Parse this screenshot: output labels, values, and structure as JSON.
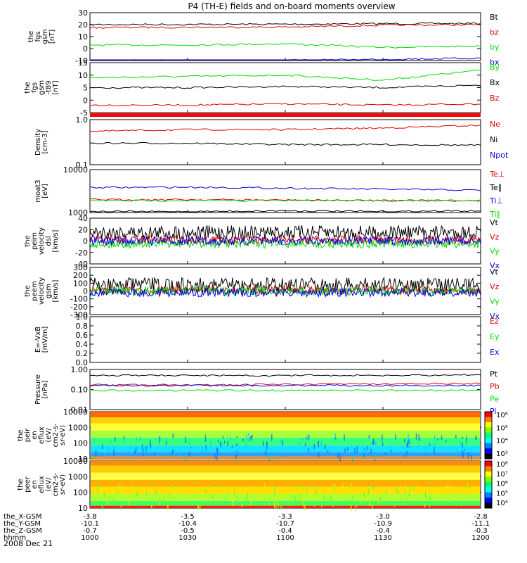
{
  "chart_data": {
    "type": "line",
    "title": "P4 (TH-E) fields and on-board moments overview",
    "date_label": "2008 Dec 21",
    "x": [
      "1000",
      "1030",
      "1100",
      "1130",
      "1200"
    ],
    "ephemeris": [
      {
        "label": "the_X-GSM",
        "values": [
          "-3.8",
          "-3.5",
          "-3.3",
          "-3.0",
          "-2.8"
        ]
      },
      {
        "label": "the_Y-GSM",
        "values": [
          "-10.1",
          "-10.4",
          "-10.7",
          "-10.9",
          "-11.1"
        ]
      },
      {
        "label": "the_Z-GSM",
        "values": [
          "-0.7",
          "-0.5",
          "-0.4",
          "-0.4",
          "-0.3"
        ]
      },
      {
        "label": "hhmm",
        "values": [
          "1000",
          "1030",
          "1100",
          "1130",
          "1200"
        ]
      }
    ],
    "panels": [
      {
        "ylabel": [
          "the",
          "fgs",
          "gsm",
          "[nT]"
        ],
        "ticks": [
          "30",
          "20",
          "10",
          "0",
          "-10"
        ],
        "series": [
          {
            "name": "Bt",
            "color": "#000000",
            "values": [
              20,
              20.2,
              20.4,
              20.8,
              21
            ]
          },
          {
            "name": "bz",
            "color": "#e00000",
            "values": [
              17.5,
              17.8,
              18,
              19.5,
              20
            ]
          },
          {
            "name": "by",
            "color": "#00dd00",
            "values": [
              3,
              3,
              4,
              1,
              2
            ]
          },
          {
            "name": "bx",
            "color": "#0000dd",
            "values": [
              -10,
              -10,
              -10,
              -9,
              -8
            ]
          }
        ]
      },
      {
        "ylabel": [
          "the",
          "fgs",
          "gsm",
          "-t89",
          "[nT]"
        ],
        "ticks": [
          "15",
          "10",
          "5",
          "0",
          "-5"
        ],
        "series": [
          {
            "name": "By",
            "color": "#00dd00",
            "values": [
              9,
              9.5,
              10,
              8,
              12
            ]
          },
          {
            "name": "Bx",
            "color": "#000000",
            "values": [
              5,
              5,
              5.5,
              5,
              6
            ]
          },
          {
            "name": "Bz",
            "color": "#e00000",
            "values": [
              -2,
              -2,
              -1.5,
              -2,
              -1.5
            ]
          }
        ]
      },
      {
        "ylabel": [
          "Density",
          "[cm-3]"
        ],
        "ticks": [
          "1.0",
          "0.1"
        ],
        "series": [
          {
            "name": "Ne",
            "color": "#e00000",
            "values": [
              0.55,
              0.6,
              0.6,
              0.65,
              0.75
            ]
          },
          {
            "name": "Ni",
            "color": "#000000",
            "values": [
              0.3,
              0.3,
              0.28,
              0.28,
              0.27
            ]
          },
          {
            "name": "Npot",
            "color": "#0000dd",
            "values": []
          }
        ]
      },
      {
        "ylabel": [
          "moat3",
          "[eV]"
        ],
        "ticks": [
          "10000",
          "1000"
        ],
        "series": [
          {
            "name": "Te⊥",
            "color": "#e00000",
            "values": [
              2000,
              2000,
              1950,
              1900,
              1900
            ]
          },
          {
            "name": "Te∥",
            "color": "#000000",
            "values": [
              1050,
              1050,
              1100,
              1050,
              1100
            ]
          },
          {
            "name": "Ti⊥",
            "color": "#0000dd",
            "values": [
              3800,
              3900,
              3700,
              3500,
              3300
            ]
          },
          {
            "name": "Ti∥",
            "color": "#00dd00",
            "values": [
              1900,
              1900,
              1900,
              1950,
              1900
            ]
          }
        ]
      },
      {
        "ylabel": [
          "the",
          "peim",
          "velocity",
          "dsl",
          "[km/s]"
        ],
        "ticks": [
          "40",
          "20",
          "0",
          "-20",
          "-40"
        ],
        "series": [
          {
            "name": "Vt",
            "color": "#000000",
            "values": [
              15,
              15,
              15,
              15,
              15
            ]
          },
          {
            "name": "Vz",
            "color": "#e00000",
            "values": [
              2,
              2,
              2,
              2,
              2
            ]
          },
          {
            "name": "Vy",
            "color": "#00dd00",
            "values": [
              -5,
              -5,
              -5,
              -5,
              -5
            ]
          },
          {
            "name": "Vx",
            "color": "#0000dd",
            "values": [
              0,
              0,
              0,
              0,
              0
            ]
          }
        ]
      },
      {
        "ylabel": [
          "the",
          "peem",
          "velocity",
          "gsm",
          "[km/s]"
        ],
        "ticks": [
          "300",
          "200",
          "100",
          "0",
          "-100",
          "-200",
          "-300"
        ],
        "series": [
          {
            "name": "Vt",
            "color": "#000000",
            "values": [
              80,
              80,
              80,
              80,
              80
            ]
          },
          {
            "name": "Vz",
            "color": "#e00000",
            "values": [
              10,
              10,
              10,
              10,
              10
            ]
          },
          {
            "name": "Vy",
            "color": "#00dd00",
            "values": [
              0,
              0,
              0,
              0,
              0
            ]
          },
          {
            "name": "Vx",
            "color": "#0000dd",
            "values": [
              -20,
              -20,
              -20,
              -20,
              -20
            ]
          }
        ]
      },
      {
        "ylabel": [
          "E=-VxB",
          "[mV/m]"
        ],
        "ticks": [
          "1.0",
          "0.8",
          "0.6",
          "0.4",
          "0.2",
          "0.0"
        ],
        "series": [
          {
            "name": "Ez",
            "color": "#e00000",
            "values": []
          },
          {
            "name": "Ey",
            "color": "#00dd00",
            "values": []
          },
          {
            "name": "Ex",
            "color": "#0000dd",
            "values": []
          }
        ]
      },
      {
        "ylabel": [
          "Pressure",
          "[nPa]"
        ],
        "ticks": [
          "1.00",
          "0.10",
          "0.01"
        ],
        "series": [
          {
            "name": "Pt",
            "color": "#000000",
            "values": [
              0.5,
              0.5,
              0.5,
              0.5,
              0.55
            ]
          },
          {
            "name": "Pb",
            "color": "#e00000",
            "values": [
              0.17,
              0.17,
              0.18,
              0.19,
              0.2
            ]
          },
          {
            "name": "Pe",
            "color": "#00dd00",
            "values": [
              0.09,
              0.09,
              0.09,
              0.09,
              0.09
            ]
          },
          {
            "name": "Pi",
            "color": "#0000dd",
            "values": [
              0.16,
              0.16,
              0.16,
              0.16,
              0.16
            ]
          }
        ]
      },
      {
        "ylabel": [
          "the",
          "peir",
          "en",
          "eflux",
          "(eV/",
          "cm2-s-",
          "sr-eV)"
        ],
        "ticks": [
          "10000",
          "1000",
          "100",
          "10"
        ],
        "type": "heatmap",
        "colorbar": [
          "10⁶",
          "10⁵",
          "10⁴",
          "10³"
        ]
      },
      {
        "ylabel": [
          "the",
          "peer",
          "en",
          "eflux",
          "(eV/",
          "cm2-s-",
          "sr-eV)"
        ],
        "ticks": [
          "10000",
          "1000",
          "100",
          "10"
        ],
        "type": "heatmap",
        "colorbar": [
          "10⁸",
          "10⁷",
          "10⁶",
          "10⁵",
          "10⁴"
        ]
      }
    ]
  }
}
